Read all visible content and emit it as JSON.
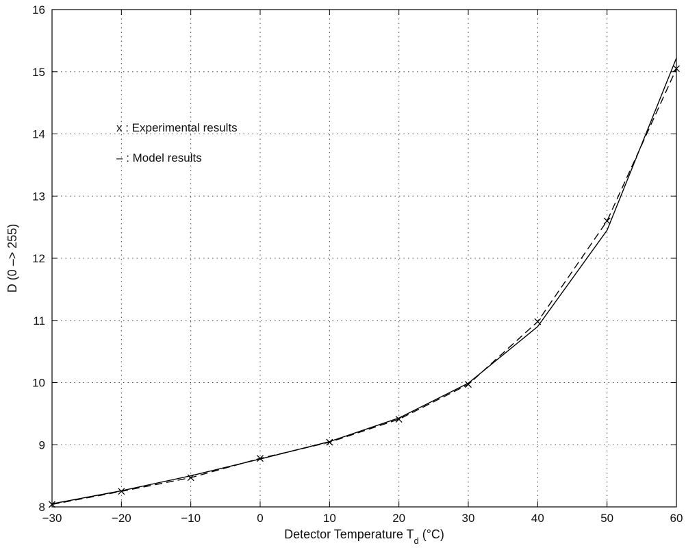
{
  "chart_data": {
    "type": "line",
    "title": "",
    "xlabel": "Detector Temperature T",
    "xlabel_subscript": "d",
    "xlabel_unit": " (°C)",
    "ylabel": "D (0 –> 255)",
    "xlim": [
      -30,
      60
    ],
    "ylim": [
      8,
      16
    ],
    "x_ticks": [
      -30,
      -20,
      -10,
      0,
      10,
      20,
      30,
      40,
      50,
      60
    ],
    "y_ticks": [
      8,
      9,
      10,
      11,
      12,
      13,
      14,
      15,
      16
    ],
    "grid": true,
    "legend_position": "upper-left",
    "series": [
      {
        "name": "Experimental results",
        "legend_symbol": "x",
        "marker": "x",
        "line": "solid",
        "color": "#000000",
        "x": [
          -30,
          -20,
          -10,
          0,
          10,
          20,
          30,
          40,
          50,
          60
        ],
        "y": [
          8.05,
          8.26,
          8.5,
          8.77,
          9.05,
          9.43,
          9.99,
          10.9,
          12.45,
          15.22
        ]
      },
      {
        "name": "Model results",
        "legend_symbol": "–",
        "marker": "x",
        "line": "dashed",
        "color": "#000000",
        "x": [
          -30,
          -20,
          -10,
          0,
          10,
          20,
          30,
          40,
          50,
          60
        ],
        "y": [
          8.04,
          8.25,
          8.47,
          8.78,
          9.04,
          9.41,
          9.97,
          10.98,
          12.6,
          15.05
        ]
      }
    ]
  }
}
